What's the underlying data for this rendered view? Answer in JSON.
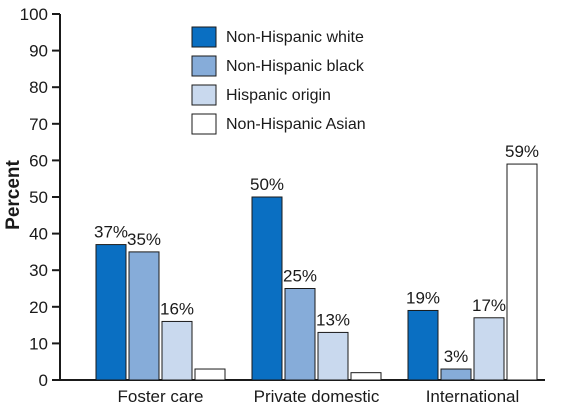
{
  "chart_data": {
    "type": "bar",
    "title": "",
    "xlabel": "",
    "ylabel": "Percent",
    "ylim": [
      0,
      100
    ],
    "yticks": [
      0,
      10,
      20,
      30,
      40,
      50,
      60,
      70,
      80,
      90,
      100
    ],
    "grid": false,
    "legend_position": "top-center",
    "categories": [
      "Foster care",
      "Private domestic",
      "International"
    ],
    "series": [
      {
        "name": "Non-Hispanic white",
        "color": "#0a6fc2",
        "values": [
          37,
          50,
          19
        ],
        "labels": [
          "37%",
          "50%",
          "19%"
        ]
      },
      {
        "name": "Non-Hispanic black",
        "color": "#86acd9",
        "values": [
          35,
          25,
          3
        ],
        "labels": [
          "35%",
          "25%",
          "3%"
        ]
      },
      {
        "name": "Hispanic origin",
        "color": "#c9d9ee",
        "values": [
          16,
          13,
          17
        ],
        "labels": [
          "16%",
          "13%",
          "17%"
        ]
      },
      {
        "name": "Non-Hispanic Asian",
        "color": "#ffffff",
        "values": [
          3,
          2,
          59
        ],
        "labels": [
          "",
          "",
          "59%"
        ]
      }
    ]
  }
}
